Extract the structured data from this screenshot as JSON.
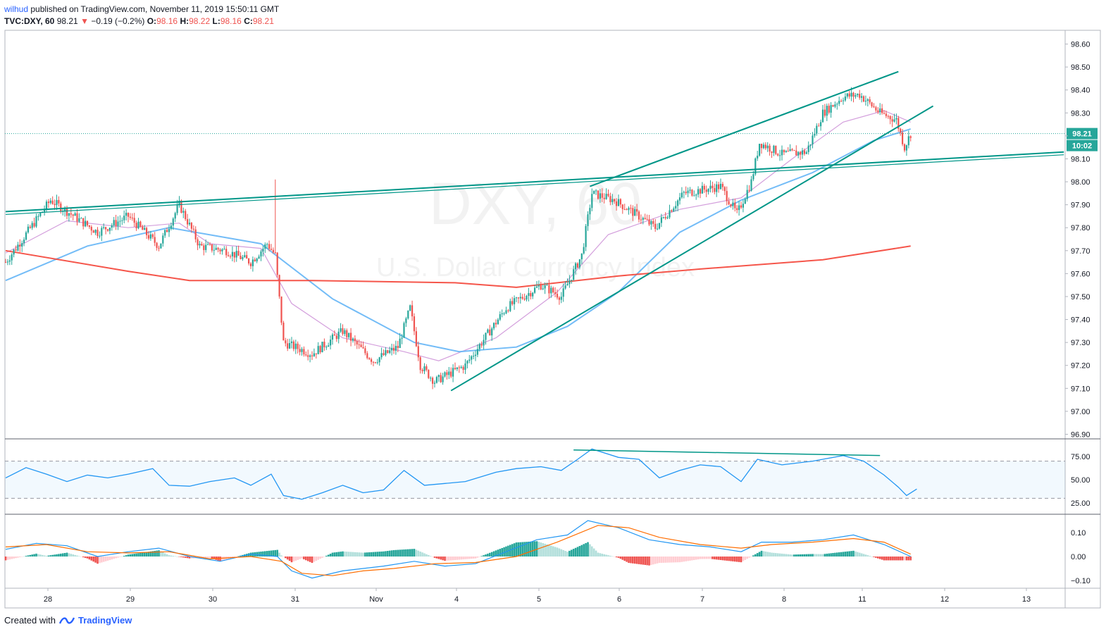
{
  "header": {
    "author": "wilhud",
    "published_text": "published on TradingView.com, November 11, 2019 15:50:11 GMT",
    "symbol": "TVC:DXY, 60",
    "last": "98.21",
    "arrow": "▼",
    "change": "−0.19 (−0.2%)",
    "o_label": "O:",
    "o_value": "98.16",
    "h_label": "H:",
    "h_value": "98.22",
    "l_label": "L:",
    "l_value": "98.16",
    "c_label": "C:",
    "c_value": "98.21"
  },
  "footer": {
    "created_with": "Created with",
    "brand": "TradingView",
    "logo_icon": "tradingview-logo-icon"
  },
  "watermark": {
    "symbol": "DXY, 60",
    "name": "U.S. Dollar Currency Index"
  },
  "chart_data": {
    "type": "candlestick",
    "price_axis": {
      "ticks": [
        "98.60",
        "98.50",
        "98.40",
        "98.30",
        "98.20",
        "98.10",
        "98.00",
        "97.90",
        "97.80",
        "97.70",
        "97.60",
        "97.50",
        "97.40",
        "97.30",
        "97.20",
        "97.10",
        "97.00",
        "96.90"
      ],
      "visible_ticks": [
        "98.60",
        "98.50",
        "98.40",
        "98.30",
        "98.10",
        "98.00",
        "97.90",
        "97.80",
        "97.70",
        "97.60",
        "97.50",
        "97.40",
        "97.30",
        "97.20",
        "97.10",
        "97.00",
        "96.90"
      ],
      "range": [
        96.88,
        98.66
      ]
    },
    "last_price_label": "98.21",
    "countdown_label": "10:02",
    "last_price": 98.21,
    "time_axis": {
      "labels": [
        "28",
        "29",
        "30",
        "31",
        "Nov",
        "4",
        "5",
        "6",
        "7",
        "8",
        "11",
        "12",
        "13"
      ]
    },
    "colors": {
      "up": "#26a69a",
      "down": "#ef5350",
      "ma_fast": "#ce93d8",
      "ma_mid": "#64b5f6",
      "ma_slow": "#f44336",
      "trend": "#009688",
      "macd": "#2196f3",
      "signal": "#ff6d00"
    },
    "key_points": [
      {
        "t": 0,
        "p": 97.65
      },
      {
        "t": 22,
        "p": 97.92
      },
      {
        "t": 45,
        "p": 97.78
      },
      {
        "t": 60,
        "p": 97.85
      },
      {
        "t": 75,
        "p": 97.72
      },
      {
        "t": 85,
        "p": 97.9
      },
      {
        "t": 95,
        "p": 97.72
      },
      {
        "t": 108,
        "p": 97.7
      },
      {
        "t": 120,
        "p": 97.65
      },
      {
        "t": 128,
        "p": 97.73
      },
      {
        "t": 132,
        "p": 97.68
      },
      {
        "t": 136,
        "p": 97.3
      },
      {
        "t": 150,
        "p": 97.25
      },
      {
        "t": 165,
        "p": 97.35
      },
      {
        "t": 180,
        "p": 97.22
      },
      {
        "t": 192,
        "p": 97.28
      },
      {
        "t": 198,
        "p": 97.45
      },
      {
        "t": 203,
        "p": 97.2
      },
      {
        "t": 210,
        "p": 97.13
      },
      {
        "t": 225,
        "p": 97.2
      },
      {
        "t": 245,
        "p": 97.45
      },
      {
        "t": 262,
        "p": 97.55
      },
      {
        "t": 272,
        "p": 97.5
      },
      {
        "t": 282,
        "p": 97.68
      },
      {
        "t": 287,
        "p": 97.95
      },
      {
        "t": 298,
        "p": 97.92
      },
      {
        "t": 310,
        "p": 97.85
      },
      {
        "t": 318,
        "p": 97.8
      },
      {
        "t": 332,
        "p": 97.95
      },
      {
        "t": 350,
        "p": 97.98
      },
      {
        "t": 358,
        "p": 97.86
      },
      {
        "t": 365,
        "p": 98.0
      },
      {
        "t": 369,
        "p": 98.17
      },
      {
        "t": 380,
        "p": 98.12
      },
      {
        "t": 392,
        "p": 98.13
      },
      {
        "t": 400,
        "p": 98.3
      },
      {
        "t": 410,
        "p": 98.37
      },
      {
        "t": 418,
        "p": 98.38
      },
      {
        "t": 428,
        "p": 98.3
      },
      {
        "t": 436,
        "p": 98.27
      },
      {
        "t": 440,
        "p": 98.15
      },
      {
        "t": 443,
        "p": 98.21
      }
    ],
    "moving_averages": [
      {
        "name": "fast",
        "points": [
          [
            0,
            97.69
          ],
          [
            30,
            97.83
          ],
          [
            60,
            97.8
          ],
          [
            85,
            97.82
          ],
          [
            100,
            97.73
          ],
          [
            125,
            97.71
          ],
          [
            140,
            97.47
          ],
          [
            165,
            97.32
          ],
          [
            195,
            97.26
          ],
          [
            212,
            97.22
          ],
          [
            240,
            97.32
          ],
          [
            270,
            97.52
          ],
          [
            295,
            97.77
          ],
          [
            330,
            97.88
          ],
          [
            360,
            97.93
          ],
          [
            385,
            98.1
          ],
          [
            410,
            98.26
          ],
          [
            430,
            98.31
          ],
          [
            443,
            98.26
          ]
        ]
      },
      {
        "name": "mid",
        "points": [
          [
            0,
            97.57
          ],
          [
            40,
            97.72
          ],
          [
            80,
            97.8
          ],
          [
            125,
            97.73
          ],
          [
            160,
            97.49
          ],
          [
            200,
            97.3
          ],
          [
            222,
            97.26
          ],
          [
            250,
            97.28
          ],
          [
            275,
            97.37
          ],
          [
            300,
            97.52
          ],
          [
            330,
            97.78
          ],
          [
            360,
            97.92
          ],
          [
            395,
            98.04
          ],
          [
            425,
            98.18
          ],
          [
            443,
            98.23
          ]
        ]
      },
      {
        "name": "slow",
        "points": [
          [
            0,
            97.7
          ],
          [
            60,
            97.61
          ],
          [
            90,
            97.57
          ],
          [
            150,
            97.57
          ],
          [
            220,
            97.56
          ],
          [
            250,
            97.54
          ],
          [
            300,
            97.59
          ],
          [
            340,
            97.62
          ],
          [
            400,
            97.66
          ],
          [
            443,
            97.72
          ]
        ]
      }
    ],
    "trendlines": [
      {
        "name": "horizontal-resistance",
        "from": [
          0,
          97.87
        ],
        "to": [
          518,
          98.13
        ]
      },
      {
        "name": "channel-upper",
        "from": [
          286,
          97.98
        ],
        "to": [
          437,
          98.48
        ]
      },
      {
        "name": "channel-lower",
        "from": [
          218,
          97.09
        ],
        "to": [
          454,
          98.33
        ]
      }
    ],
    "rsi": {
      "levels": [
        70,
        30
      ],
      "ticks": [
        "75.00",
        "50.00",
        "25.00"
      ],
      "points": [
        [
          0,
          52
        ],
        [
          10,
          63
        ],
        [
          20,
          56
        ],
        [
          30,
          48
        ],
        [
          40,
          55
        ],
        [
          50,
          52
        ],
        [
          60,
          56
        ],
        [
          72,
          62
        ],
        [
          80,
          44
        ],
        [
          90,
          43
        ],
        [
          100,
          48
        ],
        [
          112,
          52
        ],
        [
          120,
          44
        ],
        [
          130,
          56
        ],
        [
          136,
          33
        ],
        [
          145,
          29
        ],
        [
          155,
          36
        ],
        [
          165,
          44
        ],
        [
          175,
          36
        ],
        [
          185,
          39
        ],
        [
          195,
          60
        ],
        [
          205,
          44
        ],
        [
          215,
          46
        ],
        [
          225,
          48
        ],
        [
          240,
          58
        ],
        [
          250,
          62
        ],
        [
          262,
          64
        ],
        [
          272,
          60
        ],
        [
          280,
          72
        ],
        [
          287,
          83
        ],
        [
          300,
          74
        ],
        [
          310,
          72
        ],
        [
          320,
          52
        ],
        [
          330,
          60
        ],
        [
          340,
          66
        ],
        [
          350,
          64
        ],
        [
          360,
          48
        ],
        [
          368,
          72
        ],
        [
          380,
          66
        ],
        [
          395,
          70
        ],
        [
          410,
          76
        ],
        [
          420,
          70
        ],
        [
          430,
          55
        ],
        [
          437,
          42
        ],
        [
          441,
          33
        ],
        [
          446,
          40
        ]
      ],
      "divergence": {
        "from": [
          278,
          82
        ],
        "to": [
          428,
          76
        ]
      }
    },
    "macd": {
      "ticks": [
        "0.10",
        "0.00",
        "−0.10"
      ],
      "macd_line": [
        [
          0,
          0.03
        ],
        [
          15,
          0.055
        ],
        [
          30,
          0.045
        ],
        [
          45,
          0.0
        ],
        [
          60,
          0.02
        ],
        [
          75,
          0.035
        ],
        [
          90,
          0.0
        ],
        [
          105,
          -0.02
        ],
        [
          120,
          0.01
        ],
        [
          133,
          0.0
        ],
        [
          140,
          -0.06
        ],
        [
          150,
          -0.09
        ],
        [
          165,
          -0.06
        ],
        [
          185,
          -0.04
        ],
        [
          200,
          -0.02
        ],
        [
          215,
          -0.04
        ],
        [
          230,
          -0.03
        ],
        [
          245,
          0.02
        ],
        [
          260,
          0.07
        ],
        [
          275,
          0.09
        ],
        [
          285,
          0.15
        ],
        [
          300,
          0.12
        ],
        [
          315,
          0.07
        ],
        [
          330,
          0.05
        ],
        [
          345,
          0.04
        ],
        [
          360,
          0.02
        ],
        [
          370,
          0.06
        ],
        [
          385,
          0.06
        ],
        [
          400,
          0.07
        ],
        [
          415,
          0.09
        ],
        [
          430,
          0.05
        ],
        [
          443,
          0.0
        ]
      ],
      "signal_line": [
        [
          0,
          0.04
        ],
        [
          20,
          0.05
        ],
        [
          40,
          0.02
        ],
        [
          60,
          0.015
        ],
        [
          80,
          0.02
        ],
        [
          100,
          -0.01
        ],
        [
          120,
          0.0
        ],
        [
          135,
          -0.02
        ],
        [
          145,
          -0.07
        ],
        [
          160,
          -0.08
        ],
        [
          175,
          -0.06
        ],
        [
          190,
          -0.05
        ],
        [
          210,
          -0.03
        ],
        [
          230,
          -0.025
        ],
        [
          250,
          0.0
        ],
        [
          270,
          0.06
        ],
        [
          290,
          0.13
        ],
        [
          305,
          0.12
        ],
        [
          320,
          0.08
        ],
        [
          340,
          0.05
        ],
        [
          360,
          0.035
        ],
        [
          375,
          0.05
        ],
        [
          395,
          0.06
        ],
        [
          415,
          0.075
        ],
        [
          430,
          0.06
        ],
        [
          443,
          0.01
        ]
      ]
    }
  }
}
